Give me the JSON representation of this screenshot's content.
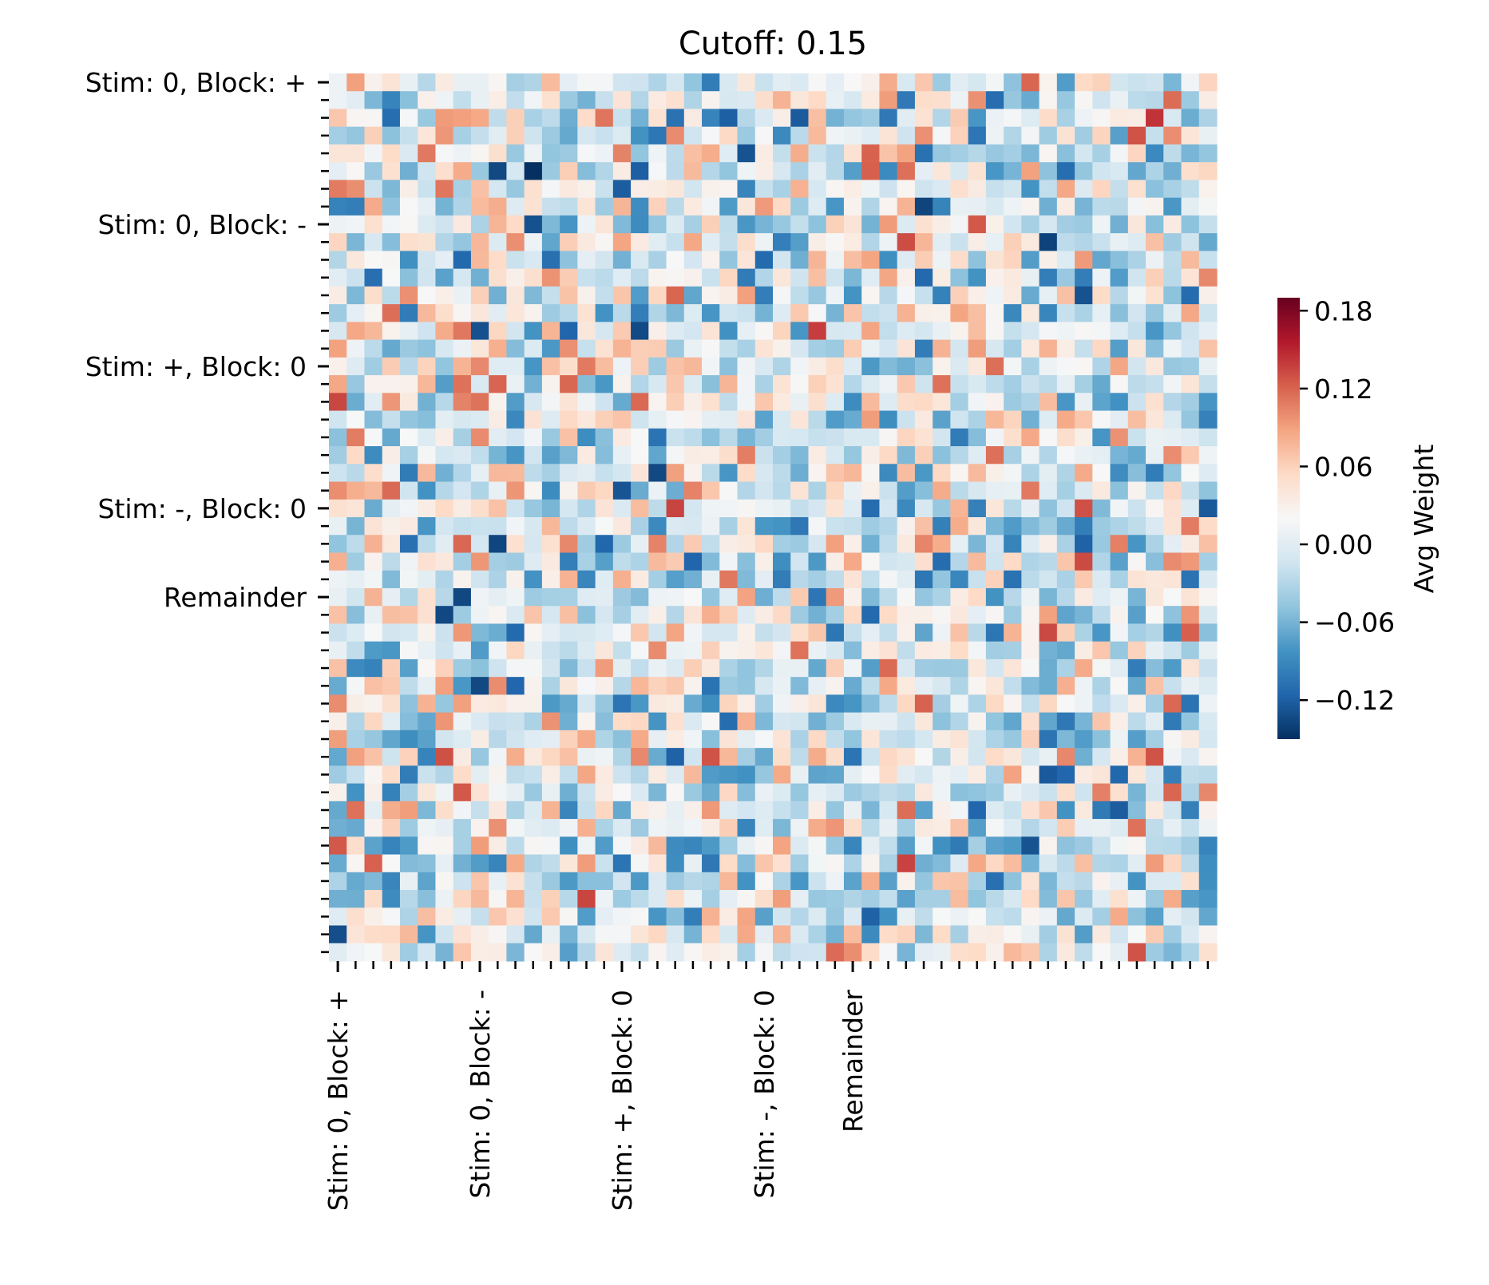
{
  "chart_data": {
    "type": "heatmap",
    "title": "Cutoff: 0.15",
    "rows": 50,
    "cols": 50,
    "group_labels": [
      "Stim: 0, Block: +",
      "Stim: 0, Block: -",
      "Stim: +, Block: 0",
      "Stim: -, Block: 0",
      "Remainder"
    ],
    "group_start_index": [
      0,
      8,
      16,
      24,
      29
    ],
    "colormap": "RdBu_r",
    "colorbar": {
      "label": "Avg Weight",
      "vmin": -0.15,
      "vmax": 0.19,
      "tick_values": [
        0.18,
        0.12,
        0.06,
        0.0,
        -0.06,
        -0.12
      ],
      "tick_labels": [
        "0.18",
        "0.12",
        "0.06",
        "0.00",
        "−0.06",
        "−0.12"
      ]
    },
    "colors": {
      "high": "#67001f",
      "zero": "#f7f7f7",
      "low": "#053061"
    },
    "values_note": "",
    "values": []
  }
}
